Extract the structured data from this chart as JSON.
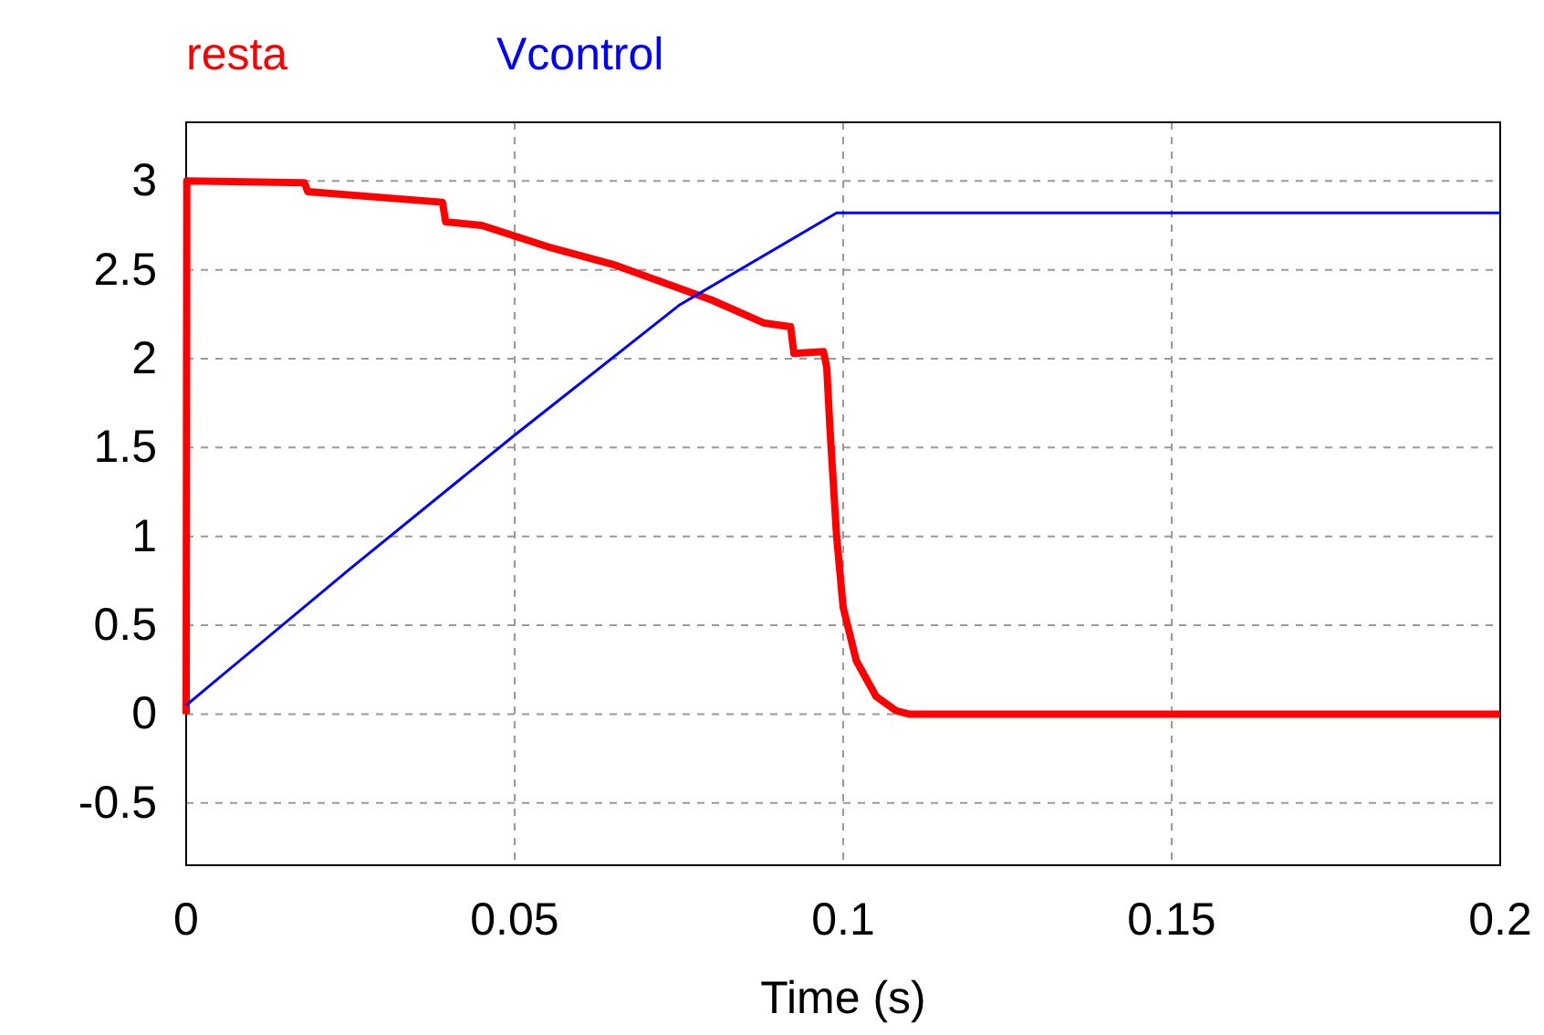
{
  "chart_data": {
    "type": "line",
    "xlabel": "Time (s)",
    "xlim": [
      0,
      0.2
    ],
    "xticks": [
      0,
      0.05,
      0.1,
      0.15,
      0.2
    ],
    "ylim": [
      -0.85,
      3.33
    ],
    "yticks": [
      -0.5,
      0,
      0.5,
      1,
      1.5,
      2,
      2.5,
      3
    ],
    "grid": true,
    "legend": "top left",
    "line_style": "solid",
    "marker": "none",
    "series": [
      {
        "name": "resta",
        "color": "#ff0000",
        "x": [
          0,
          0.0001,
          0.018,
          0.0185,
          0.039,
          0.0395,
          0.045,
          0.055,
          0.065,
          0.08,
          0.088,
          0.092,
          0.0925,
          0.097,
          0.0975,
          0.098,
          0.099,
          0.1,
          0.102,
          0.105,
          0.108,
          0.11,
          0.2
        ],
        "values": [
          0,
          3,
          2.99,
          2.94,
          2.88,
          2.77,
          2.75,
          2.63,
          2.53,
          2.33,
          2.2,
          2.18,
          2.03,
          2.04,
          1.95,
          1.6,
          1.0,
          0.6,
          0.3,
          0.1,
          0.02,
          0,
          0
        ]
      },
      {
        "name": "Vcontrol",
        "color": "#0000ff",
        "x": [
          0,
          0.025,
          0.05,
          0.075,
          0.099,
          0.2
        ],
        "values": [
          0.05,
          0.82,
          1.57,
          2.3,
          2.82,
          2.82
        ]
      }
    ]
  }
}
